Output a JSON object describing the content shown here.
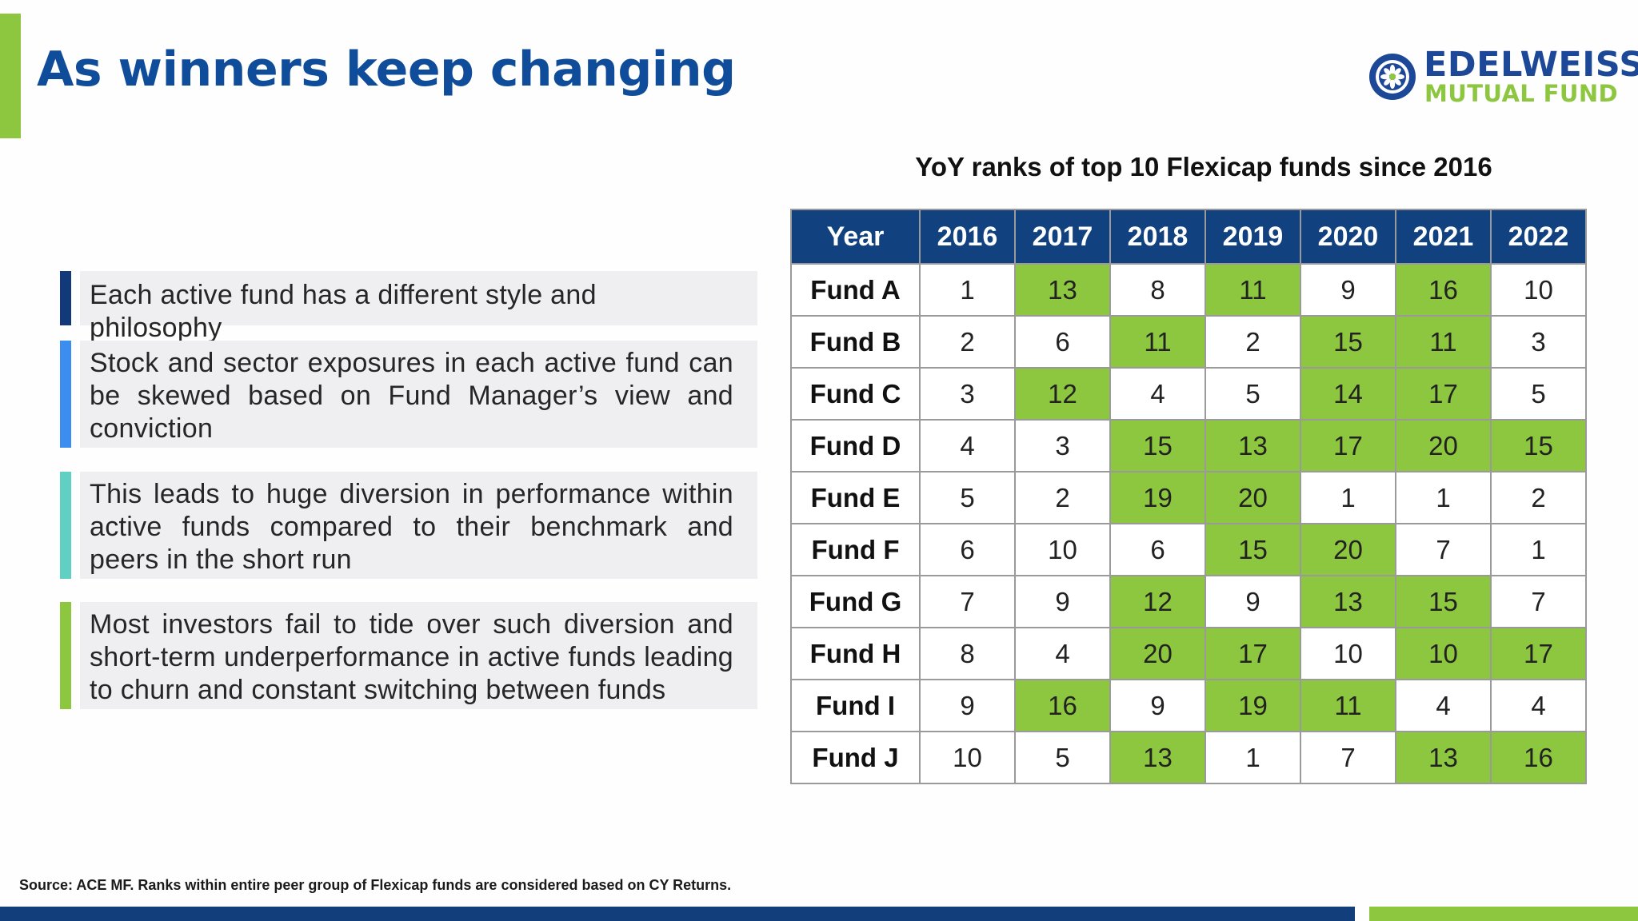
{
  "slide": {
    "title": "As winners keep changing",
    "source_note": "Source: ACE MF. Ranks within entire peer group of Flexicap funds are considered based on CY Returns."
  },
  "logo": {
    "brand": "EDELWEISS",
    "subtitle": "MUTUAL FUND",
    "icon": "edelweiss-flower-icon"
  },
  "bullets": [
    {
      "text": "Each active fund has a different style and philosophy",
      "marker_color": "#12397a"
    },
    {
      "text": "Stock and sector exposures in each active fund can be skewed based on Fund Manager’s view and conviction",
      "marker_color": "#3b8ef0"
    },
    {
      "text": "This leads to huge diversion in performance within active funds compared to their benchmark and peers in the short run",
      "marker_color": "#5fd0c2"
    },
    {
      "text": "Most investors fail to tide over such diversion and short-term underperformance in active funds leading to churn and constant switching between funds",
      "marker_color": "#8dc63f"
    }
  ],
  "table": {
    "title": "YoY ranks of top 10 Flexicap funds since 2016",
    "headers": [
      "Year",
      "2016",
      "2017",
      "2018",
      "2019",
      "2020",
      "2021",
      "2022"
    ],
    "highlight_color": "#8dc63f",
    "header_color": "#11427f",
    "rows": [
      {
        "fund": "Fund A",
        "ranks": [
          "1",
          "13",
          "8",
          "11",
          "9",
          "16",
          "10"
        ],
        "highlight": [
          false,
          true,
          false,
          true,
          false,
          true,
          false
        ]
      },
      {
        "fund": "Fund B",
        "ranks": [
          "2",
          "6",
          "11",
          "2",
          "15",
          "11",
          "3"
        ],
        "highlight": [
          false,
          false,
          true,
          false,
          true,
          true,
          false
        ]
      },
      {
        "fund": "Fund C",
        "ranks": [
          "3",
          "12",
          "4",
          "5",
          "14",
          "17",
          "5"
        ],
        "highlight": [
          false,
          true,
          false,
          false,
          true,
          true,
          false
        ]
      },
      {
        "fund": "Fund D",
        "ranks": [
          "4",
          "3",
          "15",
          "13",
          "17",
          "20",
          "15"
        ],
        "highlight": [
          false,
          false,
          true,
          true,
          true,
          true,
          true
        ]
      },
      {
        "fund": "Fund E",
        "ranks": [
          "5",
          "2",
          "19",
          "20",
          "1",
          "1",
          "2"
        ],
        "highlight": [
          false,
          false,
          true,
          true,
          false,
          false,
          false
        ]
      },
      {
        "fund": "Fund F",
        "ranks": [
          "6",
          "10",
          "6",
          "15",
          "20",
          "7",
          "1"
        ],
        "highlight": [
          false,
          false,
          false,
          true,
          true,
          false,
          false
        ]
      },
      {
        "fund": "Fund G",
        "ranks": [
          "7",
          "9",
          "12",
          "9",
          "13",
          "15",
          "7"
        ],
        "highlight": [
          false,
          false,
          true,
          false,
          true,
          true,
          false
        ]
      },
      {
        "fund": "Fund H",
        "ranks": [
          "8",
          "4",
          "20",
          "17",
          "10",
          "10",
          "17"
        ],
        "highlight": [
          false,
          false,
          true,
          true,
          false,
          true,
          true
        ]
      },
      {
        "fund": "Fund I",
        "ranks": [
          "9",
          "16",
          "9",
          "19",
          "11",
          "4",
          "4"
        ],
        "highlight": [
          false,
          true,
          false,
          true,
          true,
          false,
          false
        ]
      },
      {
        "fund": "Fund J",
        "ranks": [
          "10",
          "5",
          "13",
          "1",
          "7",
          "13",
          "16"
        ],
        "highlight": [
          false,
          false,
          true,
          false,
          false,
          true,
          true
        ]
      }
    ]
  }
}
